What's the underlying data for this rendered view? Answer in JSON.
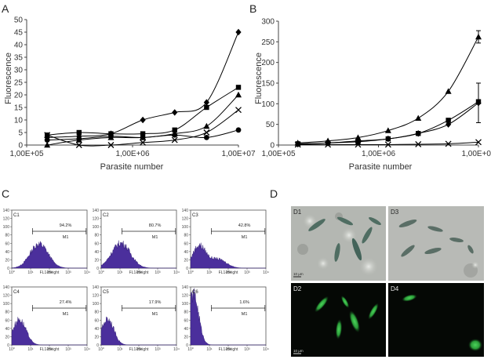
{
  "panels": {
    "A": {
      "letter": "A",
      "chart_data": {
        "type": "line",
        "title": "",
        "xlabel": "Parasite number",
        "ylabel": "Fluorescence",
        "x_scale": "log",
        "xlim": [
          100000,
          10000000
        ],
        "ylim": [
          0,
          50
        ],
        "yticks": [
          0,
          5,
          10,
          15,
          20,
          25,
          30,
          35,
          40,
          45,
          50
        ],
        "xticks": [
          100000,
          1000000,
          10000000
        ],
        "xtick_labels": [
          "1,00E+05",
          "1,00E+06",
          "1,00E+07"
        ],
        "x": [
          156250,
          312500,
          625000,
          1250000,
          2500000,
          5000000,
          10000000
        ],
        "series": [
          {
            "name": "diamond",
            "marker": "diamond",
            "values": [
              3,
              3.5,
              4.5,
              10,
              13,
              17,
              45
            ]
          },
          {
            "name": "square",
            "marker": "square",
            "values": [
              4,
              5,
              4.5,
              4.5,
              6,
              15,
              23
            ]
          },
          {
            "name": "triangle",
            "marker": "triangle",
            "values": [
              0,
              2,
              3,
              3,
              4.5,
              7.5,
              20
            ]
          },
          {
            "name": "cross",
            "marker": "x",
            "values": [
              4,
              0,
              0,
              1,
              2,
              5,
              14
            ]
          },
          {
            "name": "circle",
            "marker": "circle",
            "values": [
              2,
              2.5,
              3.5,
              3,
              4,
              3,
              6
            ]
          }
        ]
      }
    },
    "B": {
      "letter": "B",
      "chart_data": {
        "type": "line",
        "title": "",
        "xlabel": "Parasite number",
        "ylabel": "Fluorescence",
        "x_scale": "log",
        "xlim": [
          100000,
          10000000
        ],
        "ylim": [
          0,
          300
        ],
        "yticks": [
          0,
          50,
          100,
          150,
          200,
          250,
          300
        ],
        "xticks": [
          100000,
          1000000,
          10000000
        ],
        "xtick_labels": [
          "1,00E+05",
          "1,00E+06",
          "1,00E+07"
        ],
        "x": [
          156250,
          312500,
          625000,
          1250000,
          2500000,
          5000000,
          10000000
        ],
        "series": [
          {
            "name": "triangle",
            "marker": "triangle",
            "values": [
              5,
              10,
              18,
              35,
              65,
              130,
              262
            ],
            "errors": [
              0,
              0,
              0,
              0,
              0,
              0,
              15
            ]
          },
          {
            "name": "square",
            "marker": "square",
            "values": [
              3,
              5,
              8,
              15,
              28,
              60,
              105
            ]
          },
          {
            "name": "diamond",
            "marker": "diamond",
            "values": [
              2,
              5,
              10,
              15,
              28,
              50,
              102
            ],
            "errors": [
              0,
              0,
              0,
              0,
              0,
              0,
              48
            ]
          },
          {
            "name": "cross",
            "marker": "x",
            "values": [
              1,
              1,
              1,
              1,
              2,
              3,
              7
            ]
          }
        ]
      }
    },
    "C": {
      "letter": "C",
      "xlabel": "FL1-Height",
      "gate_label": "M1",
      "yticks": [
        0,
        20,
        40,
        60,
        80,
        100,
        120,
        140
      ],
      "xticks": [
        "10⁰",
        "10¹",
        "10²",
        "10³",
        "10⁴"
      ],
      "fill_color": "#4b2f9c",
      "histograms": [
        {
          "label": "C1",
          "percent": "94.2%",
          "mode": 1.45,
          "spread": 0.48,
          "peak": 60,
          "second": null
        },
        {
          "label": "C2",
          "percent": "80.7%",
          "mode": 1.05,
          "spread": 0.5,
          "peak": 62,
          "second": null
        },
        {
          "label": "C3",
          "percent": "42.8%",
          "mode": 0.45,
          "spread": 0.35,
          "peak": 55,
          "second": {
            "mode": 1.45,
            "spread": 0.45,
            "peak": 22
          }
        },
        {
          "label": "C4",
          "percent": "27.4%",
          "mode": 0.4,
          "spread": 0.35,
          "peak": 63,
          "second": null
        },
        {
          "label": "C5",
          "percent": "17.9%",
          "mode": 0.35,
          "spread": 0.32,
          "peak": 65,
          "second": null
        },
        {
          "label": "C6",
          "percent": "1.6%",
          "mode": 0.15,
          "spread": 0.28,
          "peak": 125,
          "second": null
        }
      ]
    },
    "D": {
      "letter": "D",
      "images": [
        {
          "label": "D1",
          "kind": "brightfield",
          "scale": "10 μm"
        },
        {
          "label": "D3",
          "kind": "brightfield",
          "scale": "10 μm"
        },
        {
          "label": "D2",
          "kind": "fluorescence",
          "scale": "10 μm"
        },
        {
          "label": "D4",
          "kind": "fluorescence",
          "scale": "10 μm"
        }
      ]
    }
  }
}
